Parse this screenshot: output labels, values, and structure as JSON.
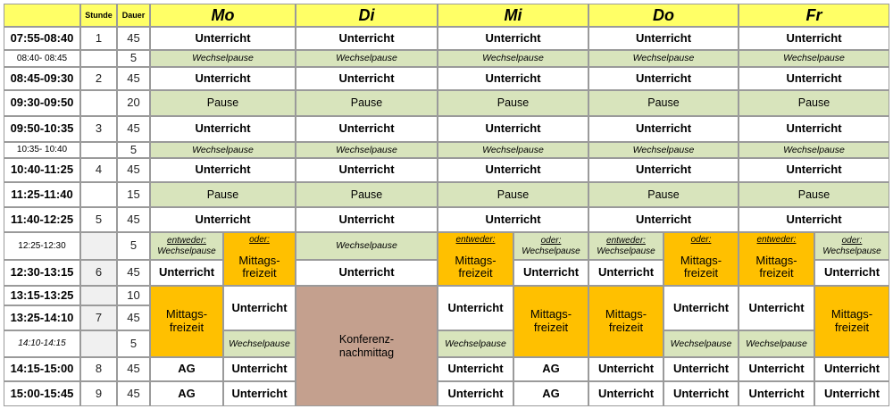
{
  "header": {
    "col_stunde": "Stunde",
    "col_dauer": "Dauer",
    "days": [
      "Mo",
      "Di",
      "Mi",
      "Do",
      "Fr"
    ]
  },
  "rows": [
    {
      "time": "07:55-08:40",
      "stunde": "1",
      "dauer": "45"
    },
    {
      "time": "08:40- 08:45",
      "stunde": "",
      "dauer": "5"
    },
    {
      "time": "08:45-09:30",
      "stunde": "2",
      "dauer": "45"
    },
    {
      "time": "09:30-09:50",
      "stunde": "",
      "dauer": "20"
    },
    {
      "time": "09:50-10:35",
      "stunde": "3",
      "dauer": "45"
    },
    {
      "time": "10:35- 10:40",
      "stunde": "",
      "dauer": "5"
    },
    {
      "time": "10:40-11:25",
      "stunde": "4",
      "dauer": "45"
    },
    {
      "time": "11:25-11:40",
      "stunde": "",
      "dauer": "15"
    },
    {
      "time": "11:40-12:25",
      "stunde": "5",
      "dauer": "45"
    },
    {
      "time": "12:25-12:30",
      "stunde": "",
      "dauer": "5"
    },
    {
      "time": "12:30-13:15",
      "stunde": "6",
      "dauer": "45"
    },
    {
      "time": "13:15-13:25",
      "stunde": "",
      "dauer": "10"
    },
    {
      "time": "13:25-14:10",
      "stunde": "7",
      "dauer": "45"
    },
    {
      "time": "14:10-14:15",
      "stunde": "",
      "dauer": "5"
    },
    {
      "time": "14:15-15:00",
      "stunde": "8",
      "dauer": "45"
    },
    {
      "time": "15:00-15:45",
      "stunde": "9",
      "dauer": "45"
    }
  ],
  "labels": {
    "unterricht": "Unterricht",
    "wechselpause": "Wechselpause",
    "pause": "Pause",
    "entweder": "entweder:",
    "oder": "oder:",
    "mittags_line1": "Mittags-",
    "mittags_line2": "freizeit",
    "ag": "AG",
    "konferenz_line1": "Konferenz-",
    "konferenz_line2": "nachmittag"
  },
  "colors": {
    "header_yellow": "#ffff66",
    "pause_green": "#d8e4bc",
    "mittags_orange": "#ffc000",
    "konferenz_brown": "#c4a08e"
  }
}
